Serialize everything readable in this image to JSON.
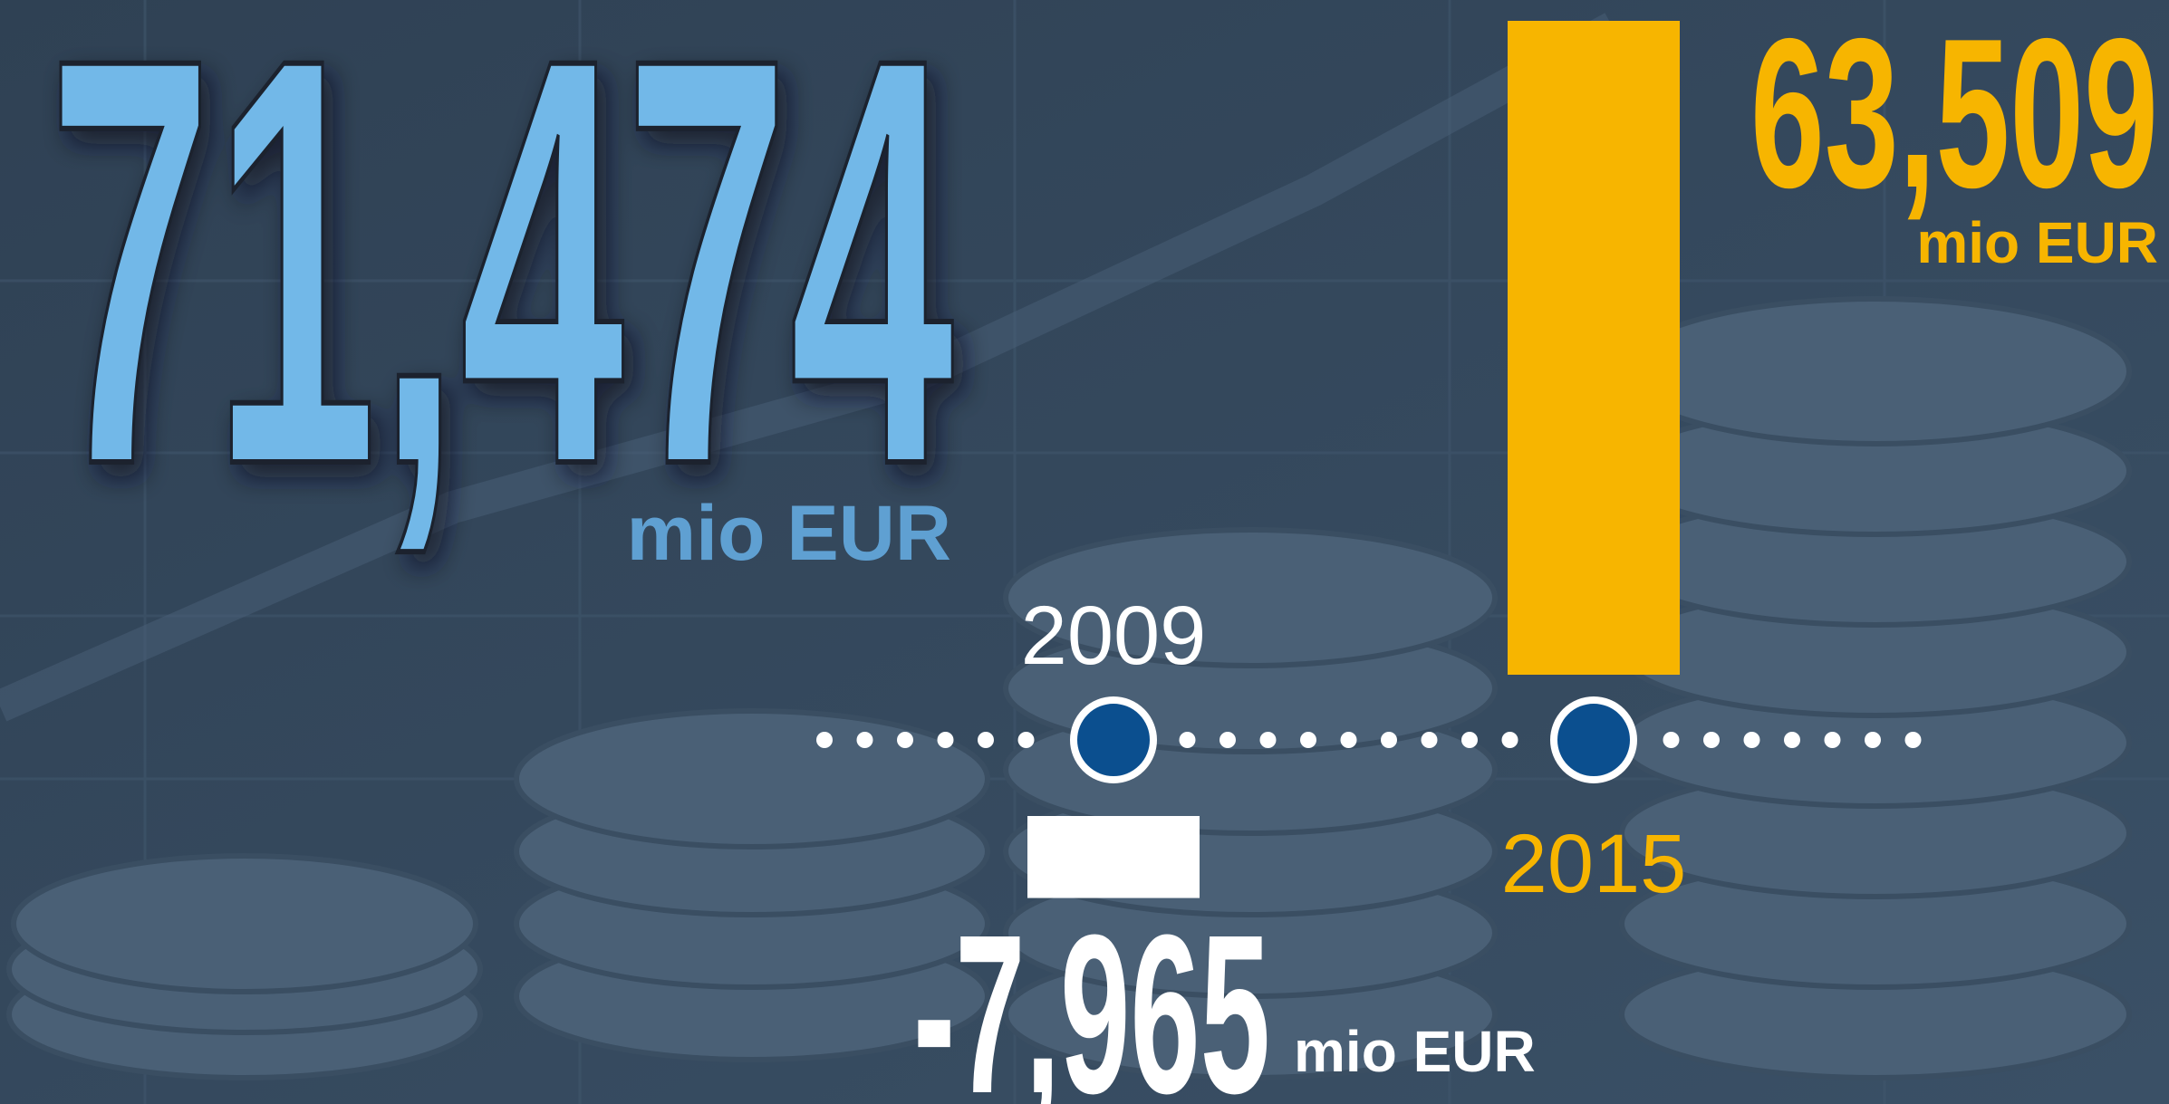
{
  "chart_data": {
    "type": "bar",
    "title": "71,474",
    "unit": "mio EUR",
    "categories": [
      "2009",
      "2015"
    ],
    "values": [
      -7965,
      63509
    ],
    "value_labels": [
      "-7,965",
      "63,509"
    ],
    "colors": [
      "#ffffff",
      "#f7b500"
    ]
  }
}
